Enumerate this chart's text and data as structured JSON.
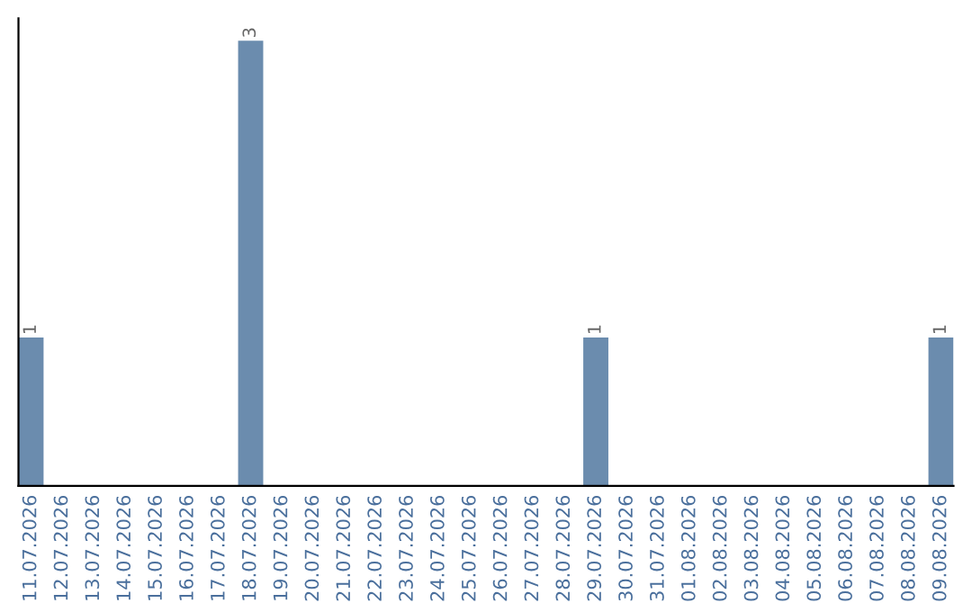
{
  "chart_data": {
    "type": "bar",
    "categories": [
      "11.07.2026",
      "12.07.2026",
      "13.07.2026",
      "14.07.2026",
      "15.07.2026",
      "16.07.2026",
      "17.07.2026",
      "18.07.2026",
      "19.07.2026",
      "20.07.2026",
      "21.07.2026",
      "22.07.2026",
      "23.07.2026",
      "24.07.2026",
      "25.07.2026",
      "26.07.2026",
      "27.07.2026",
      "28.07.2026",
      "29.07.2026",
      "30.07.2026",
      "31.07.2026",
      "01.08.2026",
      "02.08.2026",
      "03.08.2026",
      "04.08.2026",
      "05.08.2026",
      "06.08.2026",
      "07.08.2026",
      "08.08.2026",
      "09.08.2026"
    ],
    "values": [
      1,
      0,
      0,
      0,
      0,
      0,
      0,
      3,
      0,
      0,
      0,
      0,
      0,
      0,
      0,
      0,
      0,
      0,
      1,
      0,
      0,
      0,
      0,
      0,
      0,
      0,
      0,
      0,
      0,
      1
    ],
    "value_labels": [
      "1",
      null,
      null,
      null,
      null,
      null,
      null,
      "3",
      null,
      null,
      null,
      null,
      null,
      null,
      null,
      null,
      null,
      null,
      "1",
      null,
      null,
      null,
      null,
      null,
      null,
      null,
      null,
      null,
      null,
      "1"
    ],
    "color": "#6b8cae",
    "tick_labels": "x",
    "grid": false,
    "legend": false
  }
}
